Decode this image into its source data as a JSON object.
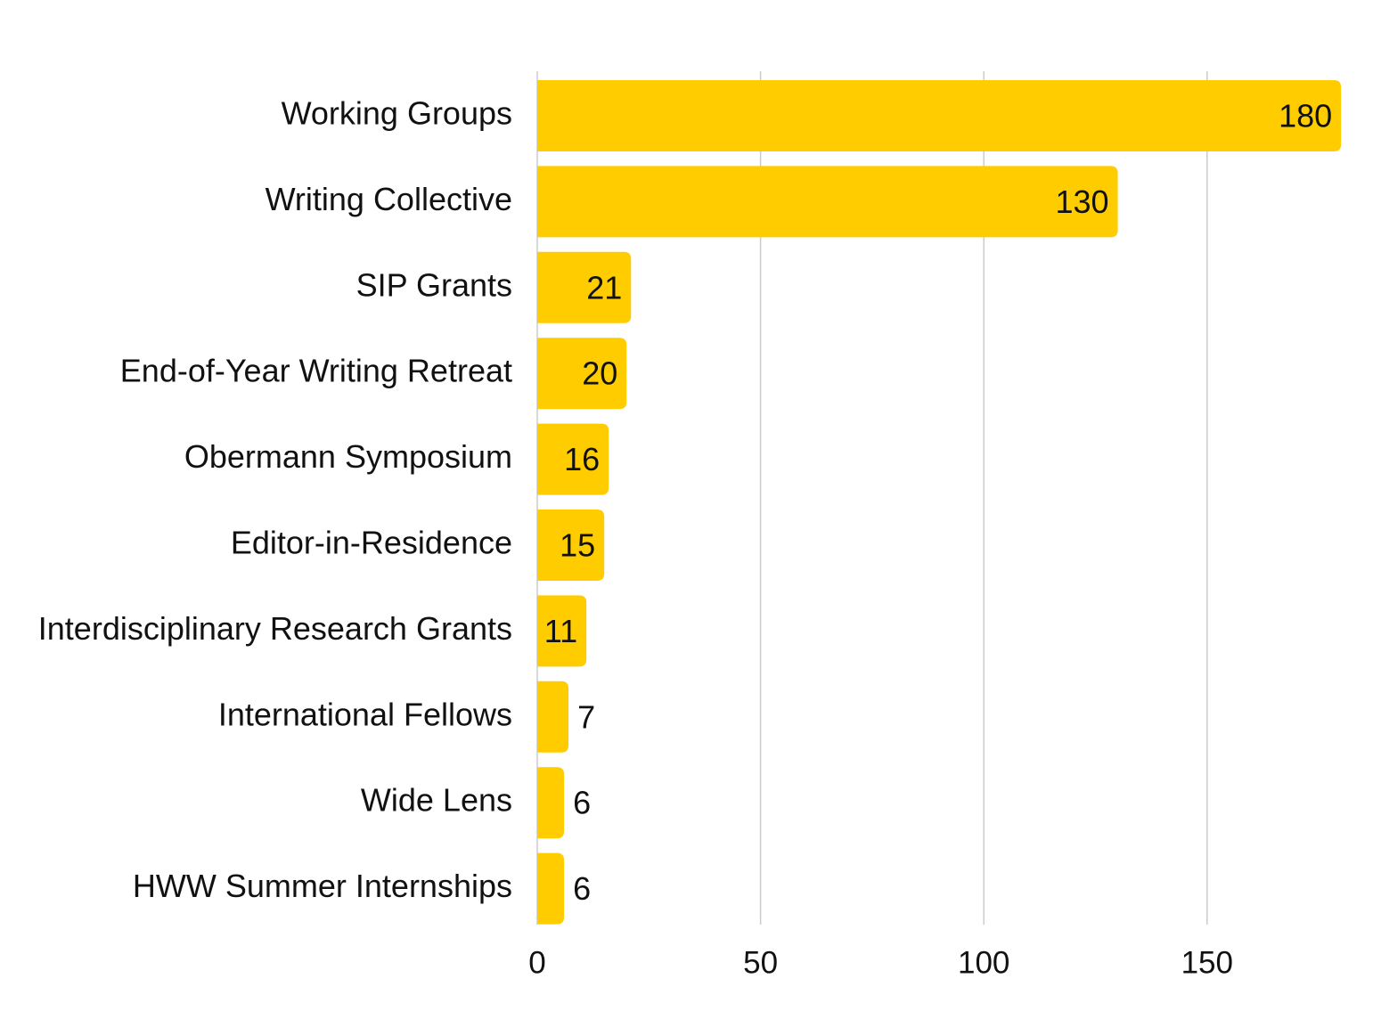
{
  "chart_data": {
    "type": "bar",
    "orientation": "horizontal",
    "categories": [
      "Working Groups",
      "Writing Collective",
      "SIP Grants",
      "End-of-Year Writing Retreat",
      "Obermann Symposium",
      "Editor-in-Residence",
      "Interdisciplinary Research Grants",
      "International Fellows",
      "Wide Lens",
      "HWW Summer Internships"
    ],
    "values": [
      180,
      130,
      21,
      20,
      16,
      15,
      11,
      7,
      6,
      6
    ],
    "data_labels": [
      "180",
      "130",
      "21",
      "20",
      "16",
      "15",
      "11",
      "7",
      "6",
      "6"
    ],
    "x_ticks": [
      0,
      50,
      100,
      150
    ],
    "x_tick_labels": [
      "0",
      "50",
      "100",
      "150"
    ],
    "xlim": [
      0,
      180
    ],
    "grid": true,
    "legend": "none",
    "bar_color": "#FFCC00"
  }
}
